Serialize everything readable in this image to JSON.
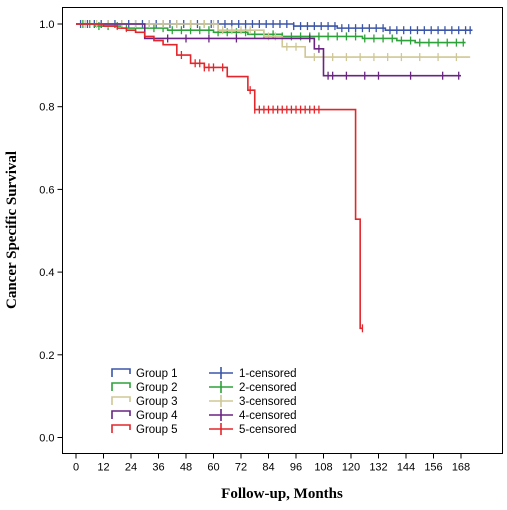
{
  "chart_data": {
    "type": "line",
    "subtype": "kaplan-meier step",
    "title": "",
    "xlabel": "Follow-up, Months",
    "ylabel": "Cancer Specific Survival",
    "xlim": [
      -3,
      174
    ],
    "ylim": [
      -0.1,
      1.04
    ],
    "xticks": [
      0,
      12,
      24,
      36,
      48,
      60,
      72,
      84,
      96,
      108,
      120,
      132,
      144,
      156,
      168
    ],
    "yticks": [
      "0.0",
      "0.2",
      "0.4",
      "0.6",
      "0.8",
      "1.0"
    ],
    "grid": false,
    "legend_position": "bottom-left",
    "series": [
      {
        "name": "Group 1",
        "censored_label": "1-censored",
        "color": "#3b55a8",
        "steps": [
          [
            0,
            1.0
          ],
          [
            95,
            0.995
          ],
          [
            114,
            0.99
          ],
          [
            135,
            0.985
          ],
          [
            173,
            0.985
          ]
        ],
        "censored": [
          2,
          5,
          8,
          11,
          14,
          17,
          20,
          23,
          26,
          29,
          32,
          35,
          38,
          41,
          44,
          47,
          50,
          53,
          56,
          59,
          62,
          65,
          68,
          71,
          74,
          77,
          80,
          83,
          86,
          89,
          92,
          95,
          98,
          101,
          104,
          107,
          110,
          113,
          116,
          119,
          122,
          125,
          128,
          131,
          134,
          137,
          140,
          143,
          146,
          149,
          152,
          155,
          158,
          161,
          164,
          167,
          170,
          172
        ]
      },
      {
        "name": "Group 2",
        "censored_label": "2-censored",
        "color": "#2ea23a",
        "steps": [
          [
            0,
            1.0
          ],
          [
            8,
            0.995
          ],
          [
            20,
            0.99
          ],
          [
            40,
            0.985
          ],
          [
            60,
            0.98
          ],
          [
            75,
            0.975
          ],
          [
            90,
            0.97
          ],
          [
            110,
            0.97
          ],
          [
            125,
            0.965
          ],
          [
            140,
            0.96
          ],
          [
            148,
            0.955
          ],
          [
            170,
            0.955
          ]
        ],
        "censored": [
          3,
          6,
          10,
          14,
          18,
          22,
          26,
          30,
          34,
          38,
          42,
          46,
          50,
          54,
          58,
          62,
          66,
          70,
          74,
          78,
          82,
          86,
          90,
          94,
          98,
          102,
          106,
          110,
          114,
          118,
          122,
          126,
          130,
          134,
          138,
          142,
          146,
          150,
          154,
          158,
          162,
          166,
          169
        ]
      },
      {
        "name": "Group 3",
        "censored_label": "3-censored",
        "color": "#cfc796",
        "steps": [
          [
            0,
            1.0
          ],
          [
            62,
            0.985
          ],
          [
            82,
            0.97
          ],
          [
            90,
            0.945
          ],
          [
            100,
            0.92
          ],
          [
            172,
            0.92
          ]
        ],
        "censored": [
          4,
          9,
          14,
          20,
          26,
          32,
          38,
          44,
          50,
          56,
          60,
          64,
          68,
          72,
          76,
          84,
          87,
          92,
          96,
          104,
          108,
          112,
          118,
          124,
          130,
          136,
          142,
          150,
          158,
          166
        ]
      },
      {
        "name": "Group 4",
        "censored_label": "4-censored",
        "color": "#6a2383",
        "steps": [
          [
            0,
            1.0
          ],
          [
            30,
            0.965
          ],
          [
            104,
            0.94
          ],
          [
            108,
            0.875
          ],
          [
            168,
            0.875
          ]
        ],
        "censored": [
          40,
          48,
          58,
          70,
          102,
          106,
          110,
          112,
          118,
          126,
          132,
          146,
          160,
          167
        ]
      },
      {
        "name": "Group 5",
        "censored_label": "5-censored",
        "color": "#e3262b",
        "steps": [
          [
            0,
            1.0
          ],
          [
            12,
            0.995
          ],
          [
            18,
            0.99
          ],
          [
            22,
            0.985
          ],
          [
            26,
            0.98
          ],
          [
            30,
            0.97
          ],
          [
            34,
            0.96
          ],
          [
            38,
            0.95
          ],
          [
            44,
            0.925
          ],
          [
            50,
            0.905
          ],
          [
            56,
            0.895
          ],
          [
            66,
            0.873
          ],
          [
            75,
            0.84
          ],
          [
            78,
            0.793
          ],
          [
            122,
            0.528
          ],
          [
            124,
            0.264
          ]
        ],
        "censored": [
          46,
          52,
          54,
          56,
          58,
          60,
          64,
          76,
          78,
          80,
          82,
          84,
          86,
          88,
          90,
          92,
          94,
          96,
          98,
          100,
          102,
          104,
          106,
          125
        ]
      }
    ]
  }
}
